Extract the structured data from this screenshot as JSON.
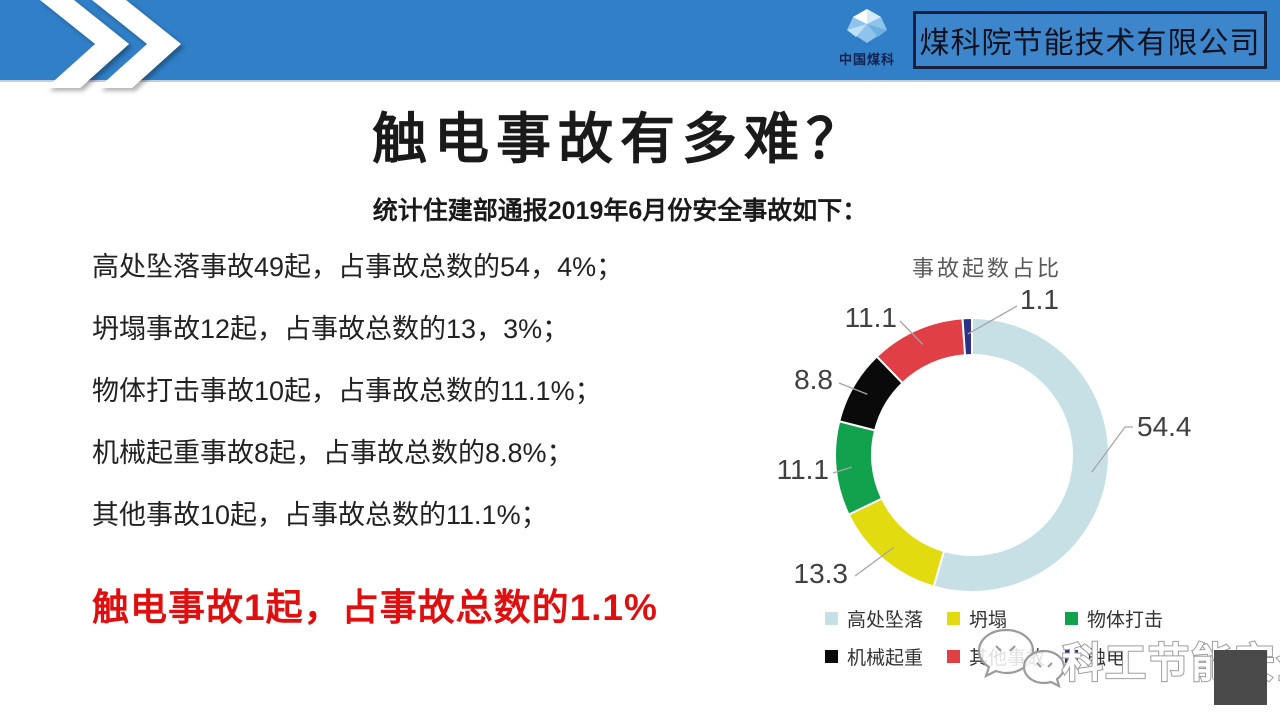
{
  "header": {
    "logo_text": "中国煤科",
    "company_name": "煤科院节能技术有限公司"
  },
  "title": "触电事故有多难？",
  "subtitle": "统计住建部通报2019年6月份安全事故如下：",
  "bullets": [
    "高处坠落事故49起，占事故总数的54，4%；",
    "坍塌事故12起，占事故总数的13，3%；",
    "物体打击事故10起，占事故总数的11.1%；",
    "机械起重事故8起，占事故总数的8.8%；",
    "其他事故10起，占事故总数的11.1%；"
  ],
  "highlight": "触电事故1起，占事故总数的1.1%",
  "watermark": {
    "icon": "wechat-icon",
    "text": "科工节能安全"
  },
  "chart_data": {
    "type": "pie",
    "donut": true,
    "title": "事故起数占比",
    "categories": [
      "高处坠落",
      "坍塌",
      "物体打击",
      "机械起重",
      "其他事故",
      "触电"
    ],
    "values": [
      54.4,
      13.3,
      11.1,
      8.8,
      11.1,
      1.1
    ],
    "colors": [
      "#C6E0E6",
      "#E2DB10",
      "#12A24D",
      "#0A0A0A",
      "#E04045",
      "#2D3185"
    ],
    "label_color": "#404040",
    "legend_position": "bottom",
    "start_angle_deg": 0,
    "direction": "clockwise"
  },
  "colors": {
    "header_bar": "#317FC7",
    "company_box_fill": "#3E86CC",
    "company_box_border": "#16203E",
    "highlight_red": "#E00F0F"
  }
}
